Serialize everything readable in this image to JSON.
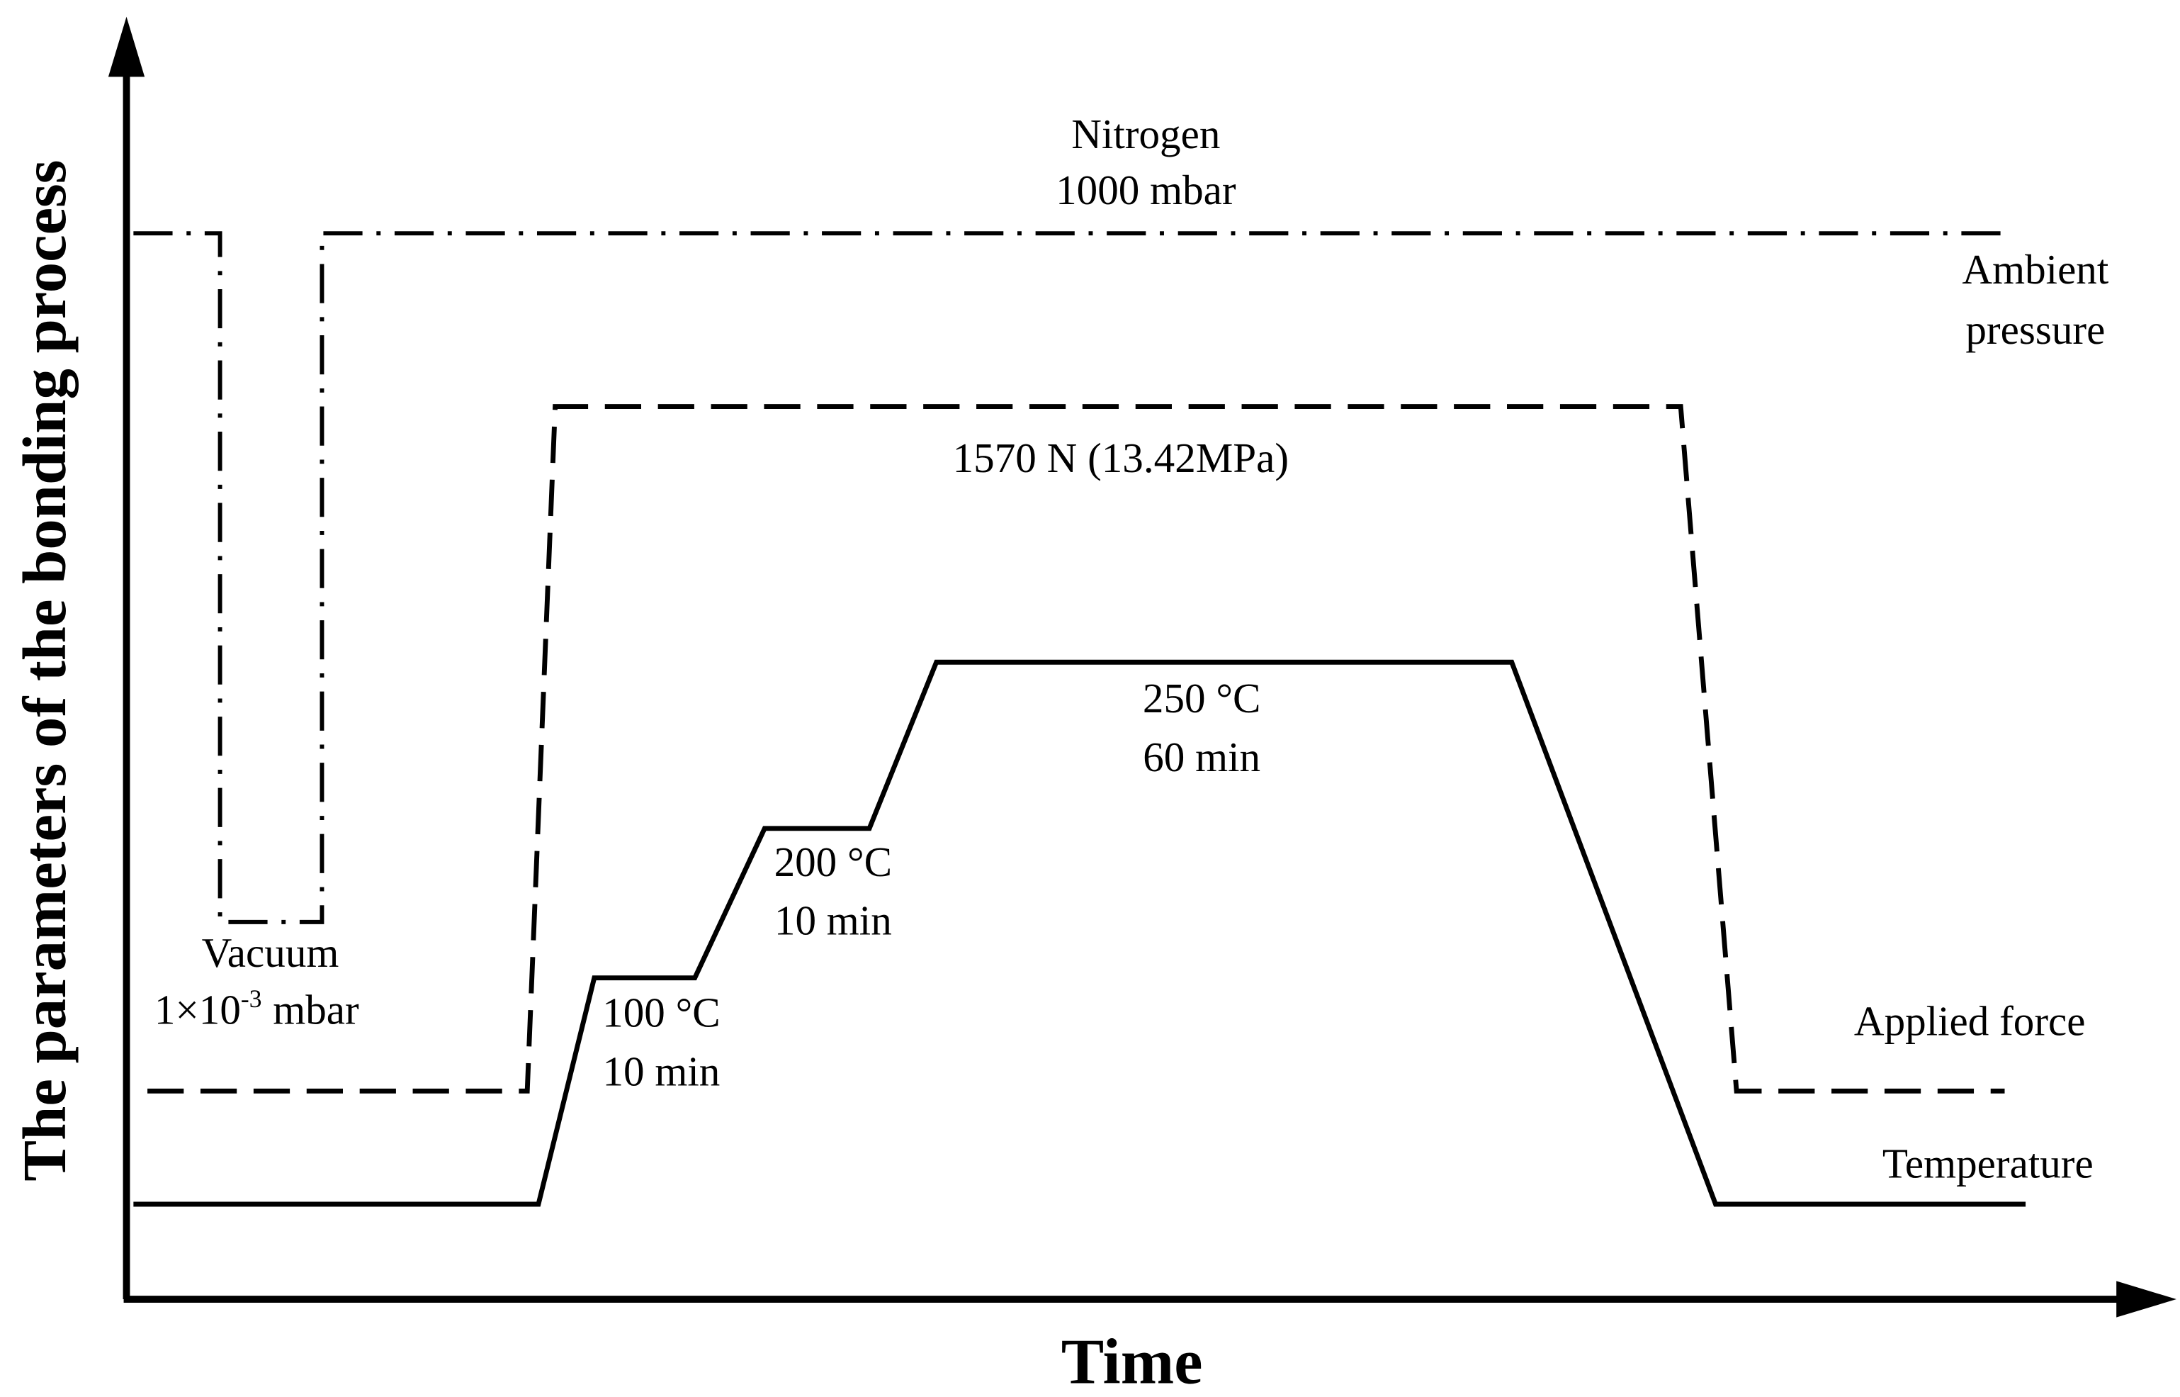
{
  "axes": {
    "y_label": "The parameters of the bonding process",
    "x_label": "Time"
  },
  "annotations": {
    "nitrogen": [
      "Nitrogen",
      "1000 mbar"
    ],
    "ambient": [
      "Ambient",
      "pressure"
    ],
    "force_value": "1570 N (13.42MPa)",
    "step_250": [
      "250 °C",
      "60 min"
    ],
    "step_200": [
      "200 °C",
      "10 min"
    ],
    "step_100": [
      "100 °C",
      "10 min"
    ],
    "vacuum": {
      "name": "Vacuum",
      "base": "1×10",
      "superscript": "-3",
      "unit": "mbar"
    },
    "applied_force": "Applied force",
    "temperature": "Temperature"
  }
}
